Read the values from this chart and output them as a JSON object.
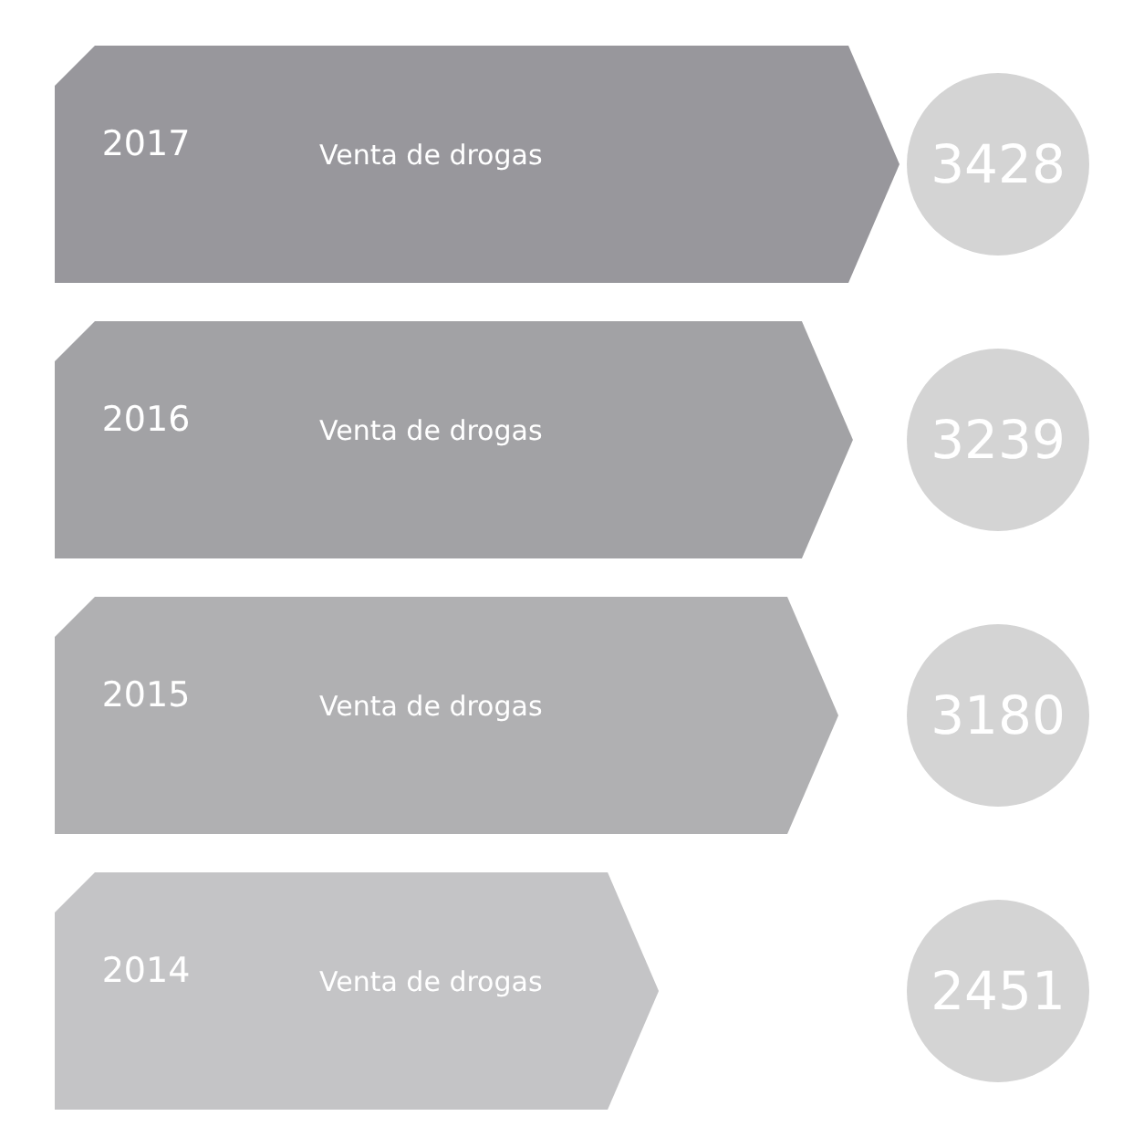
{
  "chart_data": {
    "type": "bar",
    "orientation": "horizontal",
    "categories": [
      "2017",
      "2016",
      "2015",
      "2014"
    ],
    "values": [
      3428,
      3239,
      3180,
      2451
    ],
    "colors": [
      "#98979c",
      "#a2a2a5",
      "#b0b0b2",
      "#c4c4c6"
    ],
    "data_labels": true,
    "tick_labels": "y",
    "annotations": [
      "Venta de drogas",
      "Venta de drogas",
      "Venta de drogas",
      "Venta de drogas"
    ]
  }
}
